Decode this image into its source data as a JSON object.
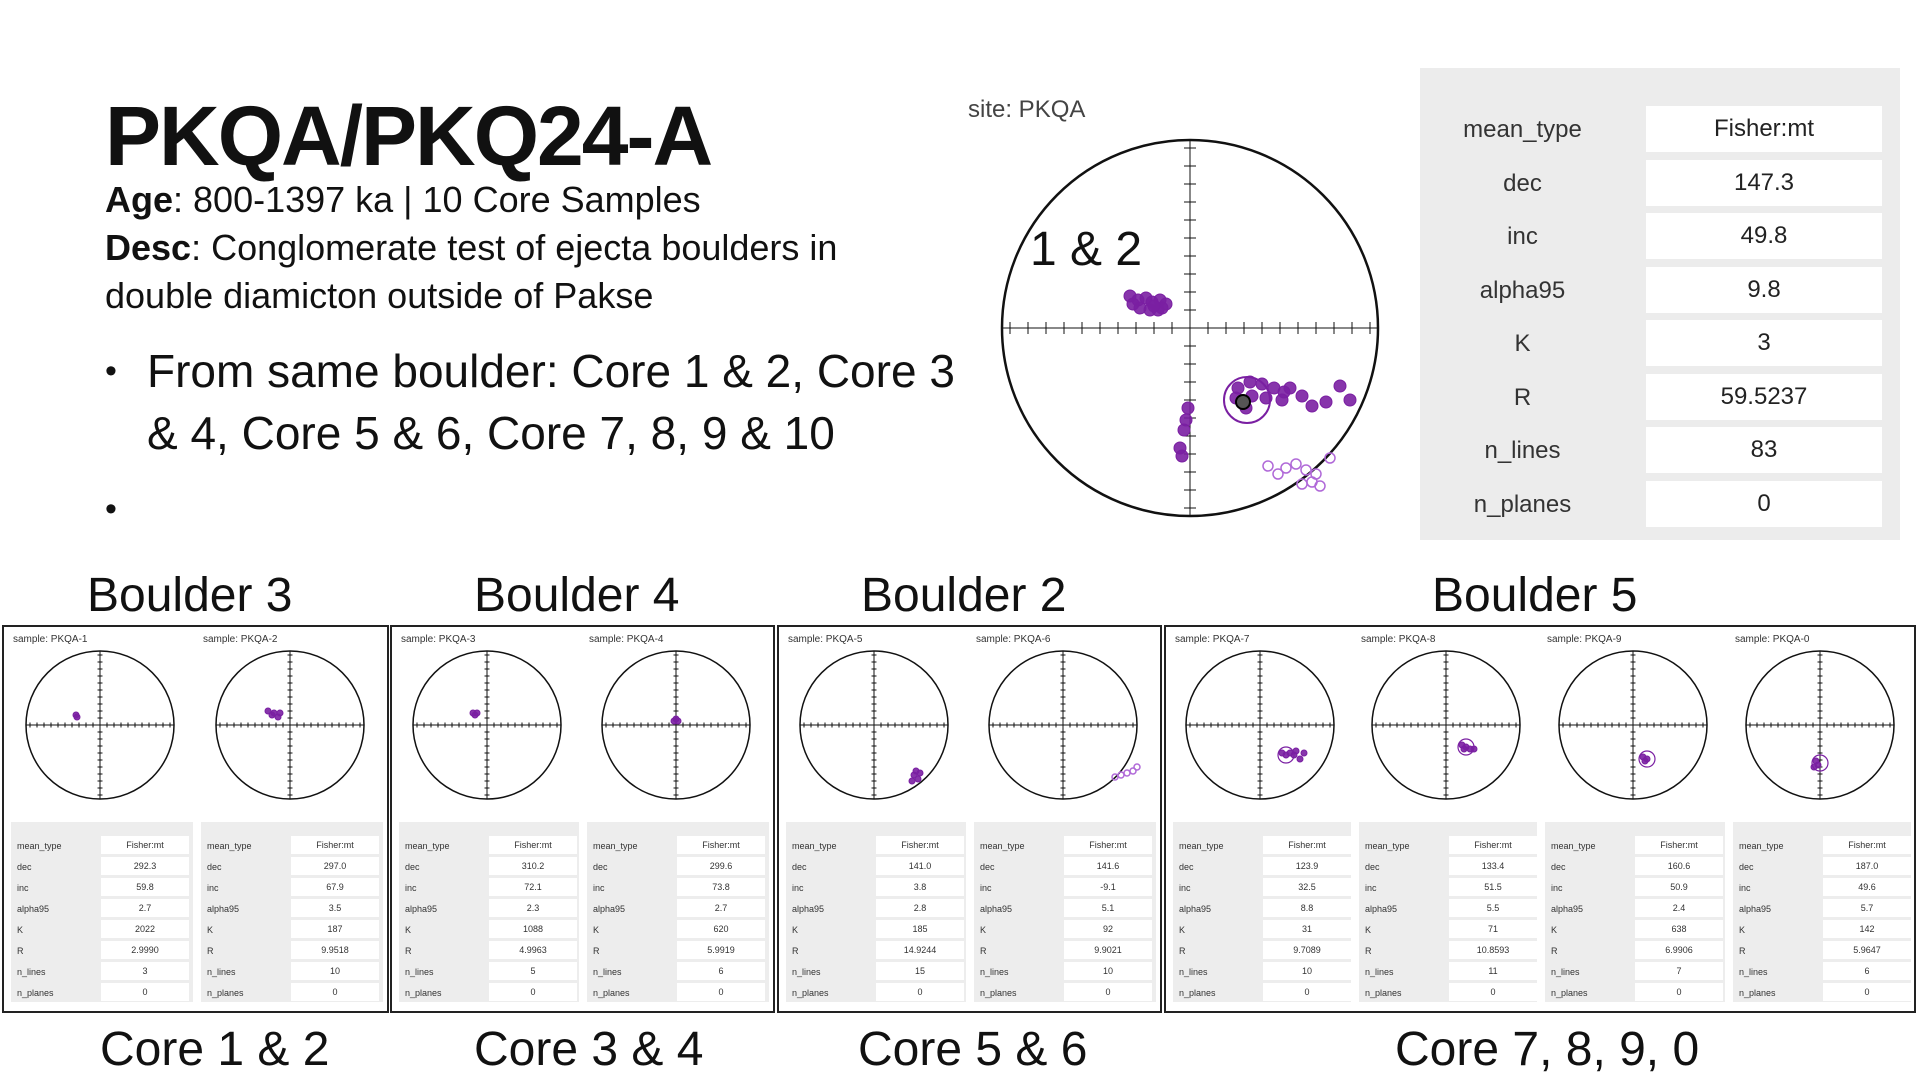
{
  "slide": {
    "title": "PKQA/PKQ24-A",
    "age_label": "Age",
    "age_text": ": 800-1397 ka | 10 Core Samples",
    "desc_label": "Desc",
    "desc_text_1": ": Conglomerate test of ejecta boulders in",
    "desc_text_2": "double diamicton outside of Pakse",
    "bullets": [
      "From same boulder: Core 1 & 2, Core 3 & 4, Core 5 & 6, Core 7, 8, 9 & 10",
      ""
    ]
  },
  "site_plot": {
    "label": "site: PKQA",
    "annotation": "1 & 2"
  },
  "site_table": {
    "rows": [
      {
        "key": "mean_type",
        "value": "Fisher:mt"
      },
      {
        "key": "dec",
        "value": "147.3"
      },
      {
        "key": "inc",
        "value": "49.8"
      },
      {
        "key": "alpha95",
        "value": "9.8"
      },
      {
        "key": "K",
        "value": "3"
      },
      {
        "key": "R",
        "value": "59.5237"
      },
      {
        "key": "n_lines",
        "value": "83"
      },
      {
        "key": "n_planes",
        "value": "0"
      }
    ]
  },
  "boulder_labels": [
    "Boulder 3",
    "Boulder 4",
    "Boulder 2",
    "Boulder 5"
  ],
  "core_labels": [
    "Core 1 & 2",
    "Core 3 & 4",
    "Core 5 & 6",
    "Core 7, 8, 9, 0"
  ],
  "table_keys": [
    "mean_type",
    "dec",
    "inc",
    "alpha95",
    "K",
    "R",
    "n_lines",
    "n_planes"
  ],
  "samples": [
    {
      "label": "sample: PKQA-1",
      "values": [
        "Fisher:mt",
        "292.3",
        "59.8",
        "2.7",
        "2022",
        "2.9990",
        "3",
        "0"
      ]
    },
    {
      "label": "sample: PKQA-2",
      "values": [
        "Fisher:mt",
        "297.0",
        "67.9",
        "3.5",
        "187",
        "9.9518",
        "10",
        "0"
      ]
    },
    {
      "label": "sample: PKQA-3",
      "values": [
        "Fisher:mt",
        "310.2",
        "72.1",
        "2.3",
        "1088",
        "4.9963",
        "5",
        "0"
      ]
    },
    {
      "label": "sample: PKQA-4",
      "values": [
        "Fisher:mt",
        "299.6",
        "73.8",
        "2.7",
        "620",
        "5.9919",
        "6",
        "0"
      ]
    },
    {
      "label": "sample: PKQA-5",
      "values": [
        "Fisher:mt",
        "141.0",
        "3.8",
        "2.8",
        "185",
        "14.9244",
        "15",
        "0"
      ]
    },
    {
      "label": "sample: PKQA-6",
      "values": [
        "Fisher:mt",
        "141.6",
        "-9.1",
        "5.1",
        "92",
        "9.9021",
        "10",
        "0"
      ]
    },
    {
      "label": "sample: PKQA-7",
      "values": [
        "Fisher:mt",
        "123.9",
        "32.5",
        "8.8",
        "31",
        "9.7089",
        "10",
        "0"
      ]
    },
    {
      "label": "sample: PKQA-8",
      "values": [
        "Fisher:mt",
        "133.4",
        "51.5",
        "5.5",
        "71",
        "10.8593",
        "11",
        "0"
      ]
    },
    {
      "label": "sample: PKQA-9",
      "values": [
        "Fisher:mt",
        "160.6",
        "50.9",
        "2.4",
        "638",
        "6.9906",
        "7",
        "0"
      ]
    },
    {
      "label": "sample: PKQA-0",
      "values": [
        "Fisher:mt",
        "187.0",
        "49.6",
        "5.7",
        "142",
        "5.9647",
        "6",
        "0"
      ]
    }
  ],
  "colors": {
    "point_fill": "#7a1fa2",
    "point_open": "#b069d8",
    "mean": "#3a0f55"
  }
}
